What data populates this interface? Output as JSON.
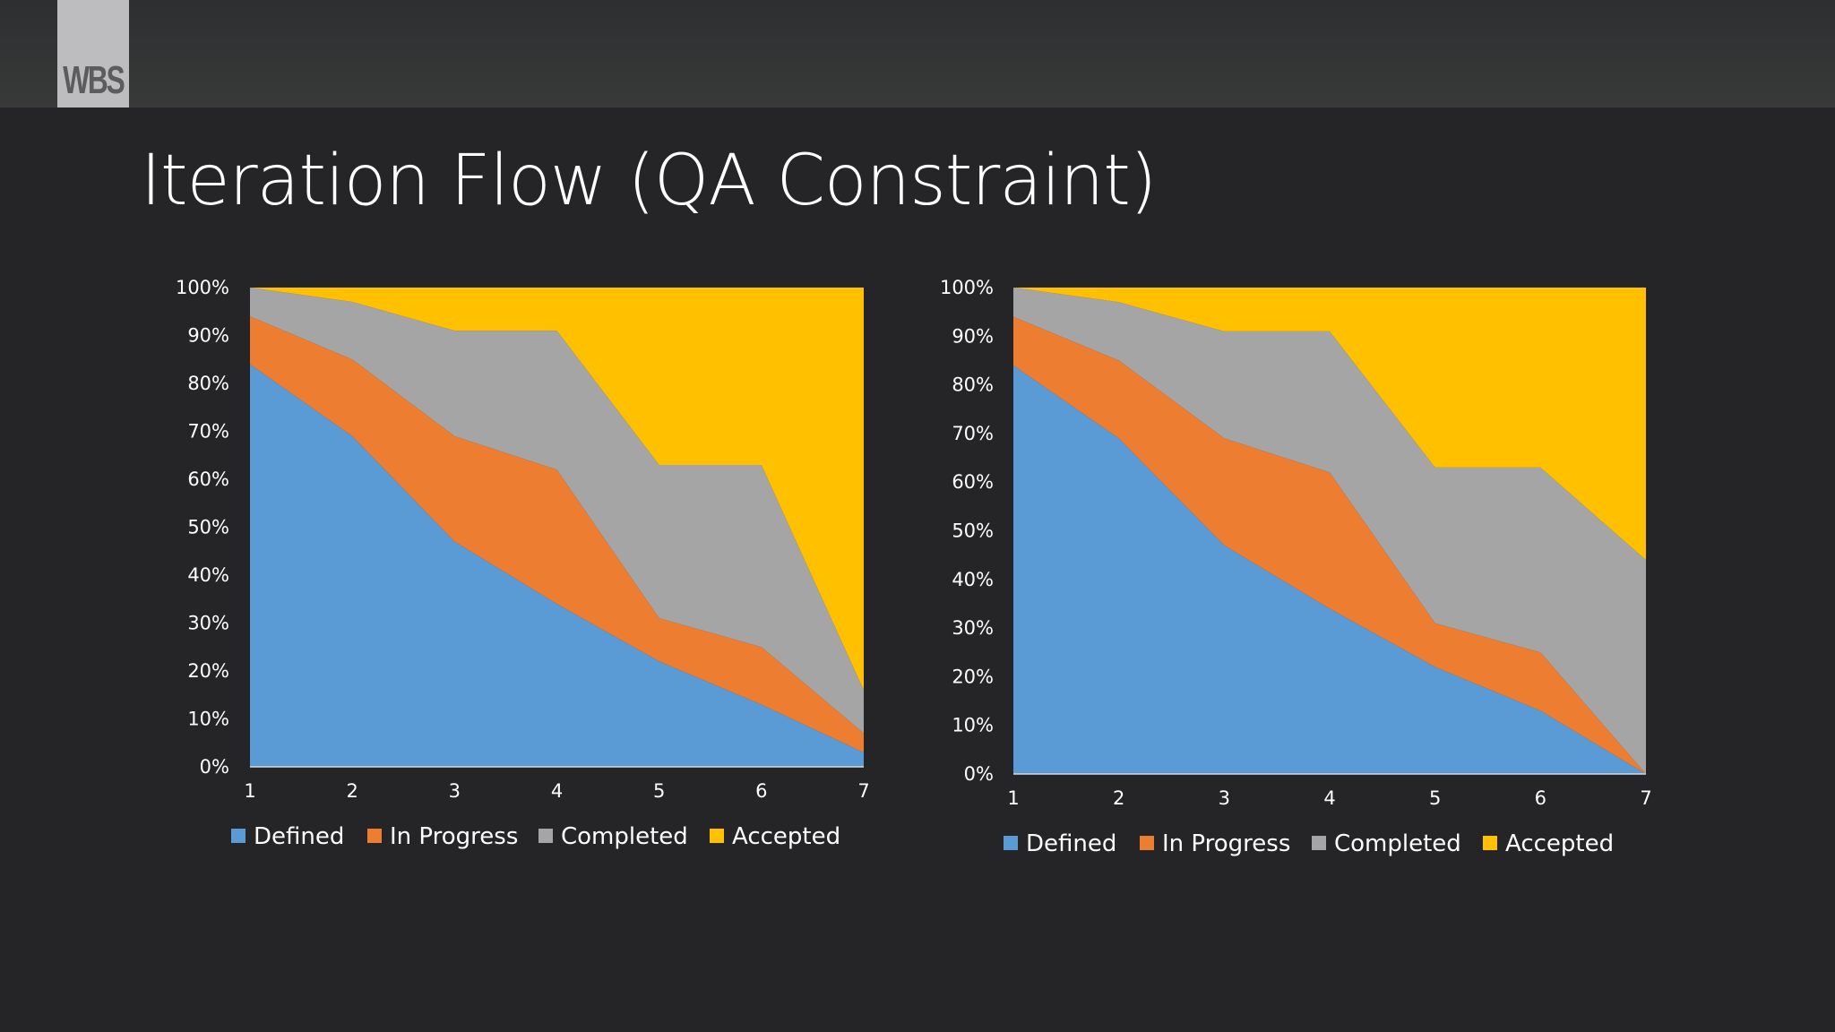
{
  "logo": {
    "text": "WBS"
  },
  "slide": {
    "title": "Iteration Flow (QA Constraint)"
  },
  "colors": {
    "Defined": "#5b9bd5",
    "In Progress": "#ed7d31",
    "Completed": "#a5a5a5",
    "Accepted": "#ffc000"
  },
  "chart_data": [
    {
      "type": "area",
      "stacked": "percent",
      "title": "",
      "xlabel": "",
      "ylabel": "",
      "categories": [
        "1",
        "2",
        "3",
        "4",
        "5",
        "6",
        "7"
      ],
      "y_ticks": [
        "0%",
        "10%",
        "20%",
        "30%",
        "40%",
        "50%",
        "60%",
        "70%",
        "80%",
        "90%",
        "100%"
      ],
      "ylim": [
        0,
        100
      ],
      "grid": false,
      "legend": "bottom",
      "series": [
        {
          "name": "Defined",
          "color": "#5b9bd5",
          "values": [
            84,
            69,
            47,
            34,
            22,
            13,
            3
          ]
        },
        {
          "name": "In Progress",
          "color": "#ed7d31",
          "values": [
            10,
            16,
            22,
            28,
            9,
            12,
            4
          ]
        },
        {
          "name": "Completed",
          "color": "#a5a5a5",
          "values": [
            6,
            12,
            22,
            29,
            32,
            38,
            9
          ]
        },
        {
          "name": "Accepted",
          "color": "#ffc000",
          "values": [
            0,
            3,
            9,
            9,
            37,
            37,
            84
          ]
        }
      ]
    },
    {
      "type": "area",
      "stacked": "percent",
      "title": "",
      "xlabel": "",
      "ylabel": "",
      "categories": [
        "1",
        "2",
        "3",
        "4",
        "5",
        "6",
        "7"
      ],
      "y_ticks": [
        "0%",
        "10%",
        "20%",
        "30%",
        "40%",
        "50%",
        "60%",
        "70%",
        "80%",
        "90%",
        "100%"
      ],
      "ylim": [
        0,
        100
      ],
      "grid": false,
      "legend": "bottom",
      "series": [
        {
          "name": "Defined",
          "color": "#5b9bd5",
          "values": [
            84,
            69,
            47,
            34,
            22,
            13,
            0
          ]
        },
        {
          "name": "In Progress",
          "color": "#ed7d31",
          "values": [
            10,
            16,
            22,
            28,
            9,
            12,
            0
          ]
        },
        {
          "name": "Completed",
          "color": "#a5a5a5",
          "values": [
            6,
            12,
            22,
            29,
            32,
            38,
            44
          ]
        },
        {
          "name": "Accepted",
          "color": "#ffc000",
          "values": [
            0,
            3,
            9,
            9,
            37,
            37,
            56
          ]
        }
      ]
    }
  ]
}
